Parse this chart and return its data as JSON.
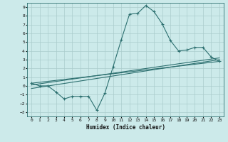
{
  "title": "",
  "xlabel": "Humidex (Indice chaleur)",
  "ylabel": "",
  "bg_color": "#cceaea",
  "grid_color": "#aacccc",
  "line_color": "#2d7070",
  "xlim": [
    -0.5,
    23.5
  ],
  "ylim": [
    -3.5,
    9.5
  ],
  "xticks": [
    0,
    1,
    2,
    3,
    4,
    5,
    6,
    7,
    8,
    9,
    10,
    11,
    12,
    13,
    14,
    15,
    16,
    17,
    18,
    19,
    20,
    21,
    22,
    23
  ],
  "yticks": [
    -3,
    -2,
    -1,
    0,
    1,
    2,
    3,
    4,
    5,
    6,
    7,
    8,
    9
  ],
  "line1_x": [
    0,
    1,
    2,
    3,
    4,
    5,
    6,
    7,
    8,
    9,
    10,
    11,
    12,
    13,
    14,
    15,
    16,
    17,
    18,
    19,
    20,
    21,
    22,
    23
  ],
  "line1_y": [
    0.3,
    0.0,
    0.0,
    -0.7,
    -1.5,
    -1.2,
    -1.2,
    -1.2,
    -2.8,
    -0.8,
    2.2,
    5.3,
    8.2,
    8.3,
    9.2,
    8.5,
    7.1,
    5.2,
    4.0,
    4.1,
    4.4,
    4.4,
    3.3,
    2.8
  ],
  "line2_x": [
    0,
    23
  ],
  "line2_y": [
    0.3,
    2.8
  ],
  "line3_x": [
    0,
    23
  ],
  "line3_y": [
    -0.3,
    3.0
  ],
  "line4_x": [
    0,
    23
  ],
  "line4_y": [
    0.1,
    3.2
  ]
}
